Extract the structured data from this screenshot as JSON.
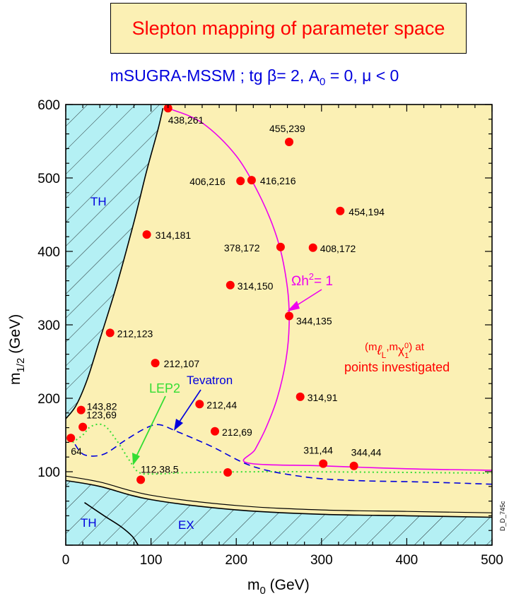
{
  "title": "Slepton mapping of parameter space",
  "subtitle": {
    "pre": "mSUGRA-MSSM ; tg β= 2, A",
    "sub": "0",
    "post": " = 0, μ < 0"
  },
  "colors": {
    "allowed_region": "#fbf0b4",
    "excluded_region": "#b4f0f4",
    "points": "#ff0000",
    "omega_curve": "#ee00ee",
    "lep2_curve": "#33dd33",
    "tevatron_curve": "#0000dd",
    "title_text": "#ff0000",
    "subtitle_text": "#0000dd"
  },
  "chart_data": {
    "type": "scatter",
    "xlabel": "m0 (GeV)",
    "ylabel": "m1/2 (GeV)",
    "xlabel_main": "m",
    "xlabel_sub": "0",
    "xlabel_unit": " (GeV)",
    "ylabel_main": "m",
    "ylabel_sub": "1/2",
    "ylabel_unit": " (GeV)",
    "xlim": [
      0,
      500
    ],
    "ylim": [
      0,
      600
    ],
    "xticks": [
      0,
      100,
      200,
      300,
      400,
      500
    ],
    "yticks": [
      100,
      200,
      300,
      400,
      500,
      600
    ],
    "grid": false,
    "points": [
      {
        "x": 120,
        "y": 595,
        "label": "438,261"
      },
      {
        "x": 262,
        "y": 549,
        "label": "455,239"
      },
      {
        "x": 205,
        "y": 496,
        "label": "406,216"
      },
      {
        "x": 218,
        "y": 497,
        "label": "416,216"
      },
      {
        "x": 322,
        "y": 455,
        "label": "454,194"
      },
      {
        "x": 95,
        "y": 423,
        "label": "314,181"
      },
      {
        "x": 252,
        "y": 406,
        "label": "378,172"
      },
      {
        "x": 290,
        "y": 405,
        "label": "408,172"
      },
      {
        "x": 193,
        "y": 354,
        "label": "314,150"
      },
      {
        "x": 262,
        "y": 312,
        "label": "344,135"
      },
      {
        "x": 52,
        "y": 289,
        "label": "212,123"
      },
      {
        "x": 105,
        "y": 248,
        "label": "212,107"
      },
      {
        "x": 157,
        "y": 192,
        "label": "212,44"
      },
      {
        "x": 275,
        "y": 202,
        "label": "314,91"
      },
      {
        "x": 18,
        "y": 184,
        "label": "143,82"
      },
      {
        "x": 20,
        "y": 161,
        "label": "123,69"
      },
      {
        "x": 175,
        "y": 155,
        "label": "212,69"
      },
      {
        "x": 6,
        "y": 146,
        "label": "64"
      },
      {
        "x": 302,
        "y": 111,
        "label": "311,44"
      },
      {
        "x": 338,
        "y": 108,
        "label": "344,44"
      },
      {
        "x": 88,
        "y": 89,
        "label": "112,38.5"
      },
      {
        "x": 190,
        "y": 99,
        "label": ""
      }
    ],
    "annotations": {
      "omega": "Ωh",
      "omega_sup": "2",
      "omega_post": "= 1",
      "lep2": "LEP2",
      "tevatron": "Tevatron",
      "legend_line1_pre": "(m",
      "legend_line1_mid": ",m",
      "legend_line1_post": ") at",
      "legend_l": "ℓ",
      "legend_l_sub": "L",
      "legend_chi": "χ",
      "legend_chi_sub": "1",
      "legend_chi_sup": "0",
      "legend_line2": "points investigated",
      "th_upper": "TH",
      "th_lower": "TH",
      "ex": "EX",
      "code": "D_D_745c"
    },
    "curves": {
      "omega_h2_1": [
        [
          120,
          595
        ],
        [
          160,
          575
        ],
        [
          200,
          530
        ],
        [
          230,
          470
        ],
        [
          250,
          410
        ],
        [
          260,
          350
        ],
        [
          262,
          300
        ],
        [
          258,
          250
        ],
        [
          248,
          200
        ],
        [
          235,
          160
        ],
        [
          222,
          130
        ],
        [
          213,
          112
        ],
        [
          300,
          108
        ],
        [
          400,
          104
        ],
        [
          500,
          102
        ]
      ],
      "lep2": [
        [
          8,
          140
        ],
        [
          20,
          150
        ],
        [
          30,
          162
        ],
        [
          45,
          163
        ],
        [
          60,
          142
        ],
        [
          75,
          115
        ],
        [
          86,
          99
        ],
        [
          105,
          97
        ],
        [
          150,
          99
        ],
        [
          250,
          100
        ],
        [
          400,
          99
        ],
        [
          500,
          98
        ]
      ],
      "tevatron": [
        [
          5,
          150
        ],
        [
          15,
          130
        ],
        [
          25,
          122
        ],
        [
          45,
          124
        ],
        [
          70,
          143
        ],
        [
          95,
          160
        ],
        [
          110,
          164
        ],
        [
          130,
          155
        ],
        [
          170,
          135
        ],
        [
          220,
          107
        ],
        [
          280,
          93
        ],
        [
          340,
          88
        ],
        [
          420,
          86
        ],
        [
          500,
          83
        ]
      ],
      "th_boundary_upper": [
        [
          0,
          172
        ],
        [
          12,
          190
        ],
        [
          25,
          225
        ],
        [
          40,
          280
        ],
        [
          60,
          355
        ],
        [
          80,
          440
        ],
        [
          95,
          510
        ],
        [
          108,
          565
        ],
        [
          114,
          595
        ]
      ],
      "ex_boundary": [
        [
          0,
          88
        ],
        [
          40,
          80
        ],
        [
          100,
          62
        ],
        [
          200,
          48
        ],
        [
          300,
          42
        ],
        [
          400,
          40
        ],
        [
          500,
          38
        ]
      ],
      "th_boundary_lower": [
        [
          22,
          58
        ],
        [
          45,
          40
        ],
        [
          65,
          25
        ],
        [
          78,
          12
        ],
        [
          85,
          0
        ]
      ]
    }
  }
}
